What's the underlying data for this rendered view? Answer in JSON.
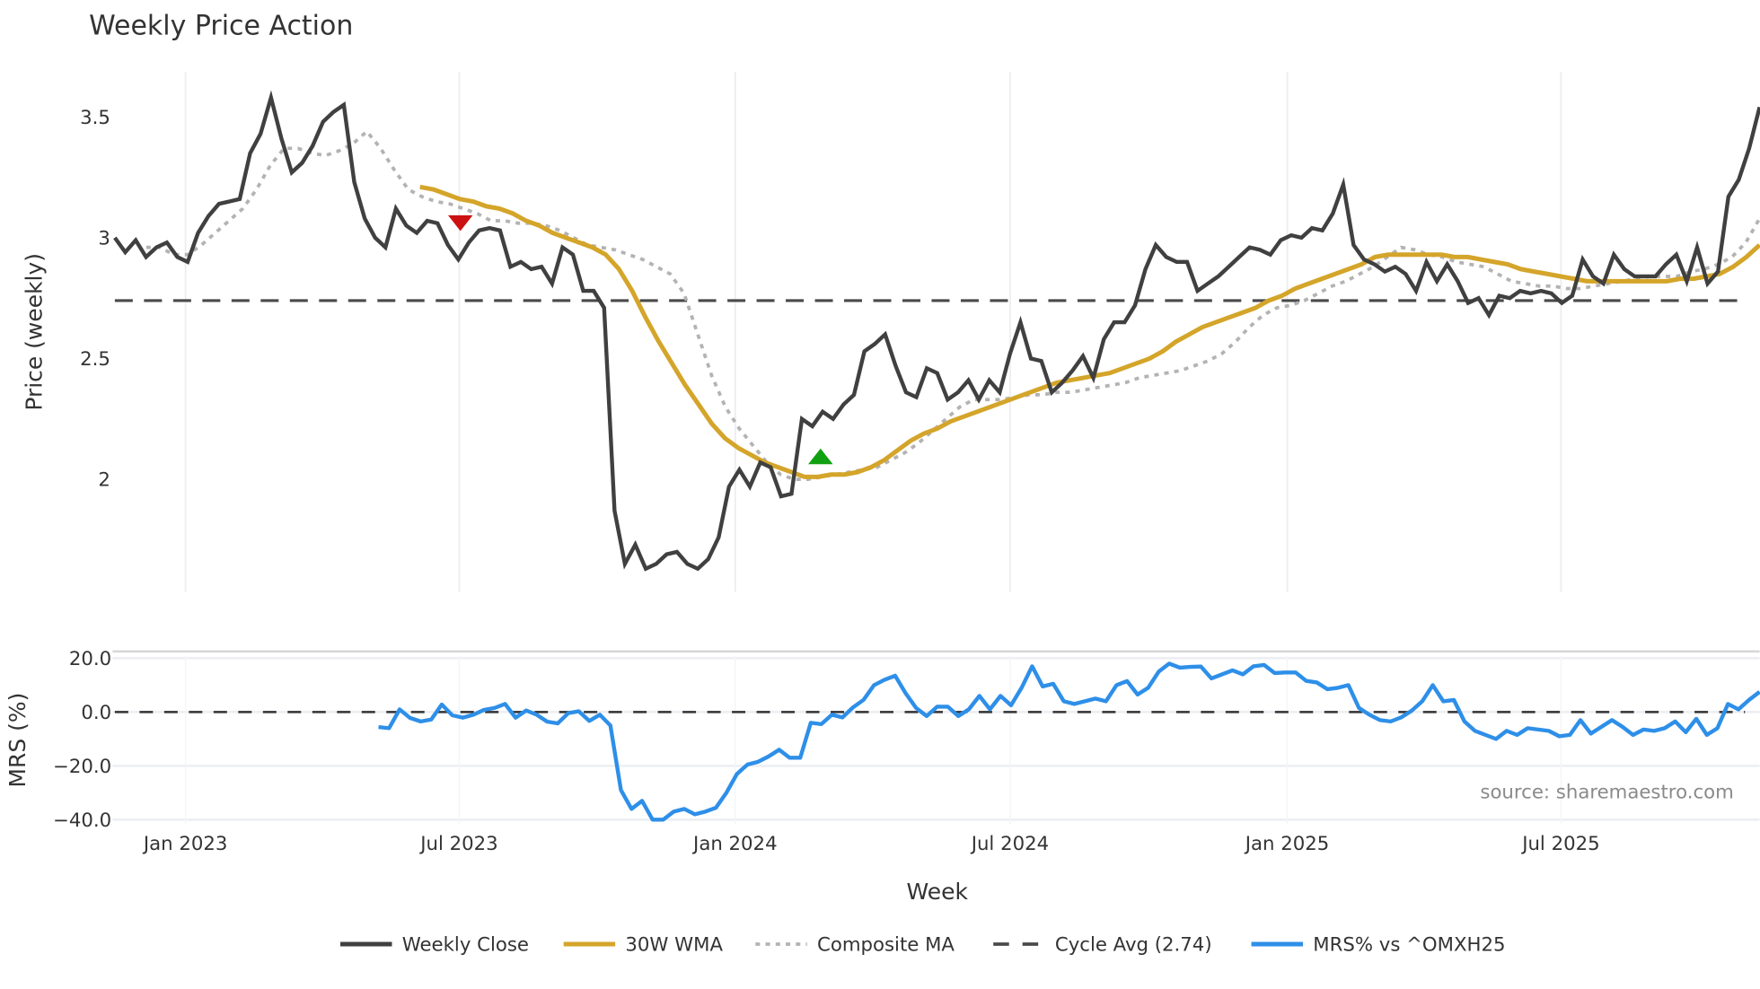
{
  "title": "Weekly Price Action",
  "source_text": "source: sharemaestro.com",
  "colors": {
    "weekly_close": "#404040",
    "wma30": "#D4A52A",
    "composite_ma": "#b3b3b3",
    "cycle_avg": "#4a4a4a",
    "mrs": "#2E8FE8",
    "sell_marker": "#CC1111",
    "buy_marker": "#11A011",
    "grid": "#eceef2",
    "mrs_zero_line": "#333333"
  },
  "legend": [
    {
      "label": "Weekly Close",
      "style": "solid",
      "color": "#404040"
    },
    {
      "label": "30W WMA",
      "style": "solid",
      "color": "#D4A52A"
    },
    {
      "label": "Composite MA",
      "style": "dotted",
      "color": "#b3b3b3"
    },
    {
      "label": "Cycle Avg (2.74)",
      "style": "dashed",
      "color": "#4a4a4a"
    },
    {
      "label": "MRS% vs ^OMXH25",
      "style": "solid",
      "color": "#2E8FE8"
    }
  ],
  "price_panel": {
    "ylabel": "Price (weekly)",
    "yticks": [
      "2",
      "2.5",
      "3",
      "3.5"
    ]
  },
  "mrs_panel": {
    "ylabel": "MRS (%)",
    "yticks": [
      "20.0",
      "0.0",
      "−20.0",
      "−40.0"
    ]
  },
  "xaxis": {
    "xlabel": "Week",
    "xticks": [
      "Jan 2023",
      "Jul 2023",
      "Jan 2024",
      "Jul 2024",
      "Jan 2025",
      "Jul 2025"
    ]
  },
  "chart_data": [
    {
      "type": "line",
      "title": "Weekly Price Action",
      "xlabel": "Week",
      "ylabel": "Price (weekly)",
      "ylim": [
        1.55,
        3.7
      ],
      "grid": true,
      "legend_position": "bottom",
      "x_tick_labels": [
        "Jan 2023",
        "Jul 2023",
        "Jan 2024",
        "Jul 2024",
        "Jan 2025",
        "Jul 2025"
      ],
      "y_tick_labels": [
        "2",
        "2.5",
        "3",
        "3.5"
      ],
      "series": [
        {
          "name": "Weekly Close",
          "x_start": "Nov 2022",
          "frequency": "weekly",
          "values": [
            3.0,
            2.94,
            2.99,
            2.92,
            2.96,
            2.98,
            2.92,
            2.9,
            3.02,
            3.09,
            3.14,
            3.15,
            3.16,
            3.35,
            3.43,
            3.58,
            3.41,
            3.27,
            3.31,
            3.38,
            3.48,
            3.52,
            3.55,
            3.23,
            3.08,
            3.0,
            2.96,
            3.12,
            3.05,
            3.02,
            3.07,
            3.06,
            2.97,
            2.91,
            2.98,
            3.03,
            3.04,
            3.03,
            2.88,
            2.9,
            2.87,
            2.88,
            2.81,
            2.96,
            2.93,
            2.78,
            2.78,
            2.71,
            1.87,
            1.65,
            1.73,
            1.63,
            1.65,
            1.69,
            1.7,
            1.65,
            1.63,
            1.67,
            1.76,
            1.97,
            2.04,
            1.97,
            2.07,
            2.05,
            1.93,
            1.94,
            2.25,
            2.22,
            2.28,
            2.25,
            2.31,
            2.35,
            2.53,
            2.56,
            2.6,
            2.47,
            2.36,
            2.34,
            2.46,
            2.44,
            2.33,
            2.36,
            2.41,
            2.33,
            2.41,
            2.36,
            2.52,
            2.65,
            2.5,
            2.49,
            2.36,
            2.4,
            2.45,
            2.51,
            2.42,
            2.58,
            2.65,
            2.65,
            2.72,
            2.87,
            2.97,
            2.92,
            2.9,
            2.9,
            2.78,
            2.81,
            2.84,
            2.88,
            2.92,
            2.96,
            2.95,
            2.93,
            2.99,
            3.01,
            3.0,
            3.04,
            3.03,
            3.1,
            3.22,
            2.97,
            2.91,
            2.89,
            2.86,
            2.88,
            2.85,
            2.78,
            2.9,
            2.82,
            2.89,
            2.82,
            2.73,
            2.75,
            2.68,
            2.76,
            2.75,
            2.78,
            2.77,
            2.78,
            2.77,
            2.73,
            2.76,
            2.91,
            2.84,
            2.81,
            2.93,
            2.87,
            2.84,
            2.84,
            2.84,
            2.89,
            2.93,
            2.82,
            2.96,
            2.81,
            2.86,
            3.17,
            3.24,
            3.37,
            3.54
          ]
        },
        {
          "name": "30W WMA",
          "x_start": "Jun 2023",
          "frequency": "weekly",
          "values": [
            3.21,
            3.2,
            3.18,
            3.16,
            3.15,
            3.13,
            3.12,
            3.1,
            3.07,
            3.05,
            3.02,
            3.0,
            2.98,
            2.96,
            2.93,
            2.87,
            2.78,
            2.67,
            2.57,
            2.48,
            2.39,
            2.31,
            2.23,
            2.17,
            2.13,
            2.1,
            2.07,
            2.05,
            2.03,
            2.01,
            2.01,
            2.02,
            2.02,
            2.03,
            2.05,
            2.08,
            2.12,
            2.16,
            2.19,
            2.21,
            2.24,
            2.26,
            2.28,
            2.3,
            2.32,
            2.34,
            2.36,
            2.38,
            2.4,
            2.41,
            2.42,
            2.43,
            2.44,
            2.46,
            2.48,
            2.5,
            2.53,
            2.57,
            2.6,
            2.63,
            2.65,
            2.67,
            2.69,
            2.71,
            2.74,
            2.76,
            2.79,
            2.81,
            2.83,
            2.85,
            2.87,
            2.89,
            2.92,
            2.93,
            2.93,
            2.93,
            2.93,
            2.93,
            2.92,
            2.92,
            2.91,
            2.9,
            2.89,
            2.87,
            2.86,
            2.85,
            2.84,
            2.83,
            2.82,
            2.82,
            2.82,
            2.82,
            2.82,
            2.82,
            2.82,
            2.83,
            2.83,
            2.84,
            2.85,
            2.88,
            2.92,
            2.97
          ]
        },
        {
          "name": "Composite MA",
          "x_start": "Dec 2022",
          "frequency": "weekly",
          "values": [
            2.96,
            2.96,
            2.93,
            2.93,
            2.97,
            3.02,
            3.07,
            3.12,
            3.2,
            3.3,
            3.37,
            3.37,
            3.35,
            3.34,
            3.36,
            3.39,
            3.44,
            3.37,
            3.28,
            3.2,
            3.17,
            3.15,
            3.14,
            3.12,
            3.1,
            3.07,
            3.07,
            3.06,
            3.06,
            3.05,
            3.03,
            3.0,
            2.97,
            2.96,
            2.95,
            2.93,
            2.91,
            2.88,
            2.85,
            2.77,
            2.6,
            2.43,
            2.3,
            2.21,
            2.14,
            2.07,
            2.02,
            2.0,
            2.0,
            2.01,
            2.02,
            2.03,
            2.04,
            2.05,
            2.08,
            2.11,
            2.15,
            2.2,
            2.25,
            2.3,
            2.33,
            2.33,
            2.33,
            2.34,
            2.35,
            2.35,
            2.36,
            2.36,
            2.37,
            2.38,
            2.39,
            2.4,
            2.42,
            2.43,
            2.44,
            2.45,
            2.47,
            2.49,
            2.52,
            2.57,
            2.63,
            2.68,
            2.71,
            2.72,
            2.74,
            2.77,
            2.8,
            2.82,
            2.85,
            2.88,
            2.92,
            2.96,
            2.95,
            2.93,
            2.92,
            2.9,
            2.89,
            2.88,
            2.85,
            2.82,
            2.81,
            2.8,
            2.8,
            2.79,
            2.79,
            2.8,
            2.81,
            2.82,
            2.83,
            2.84,
            2.84,
            2.84,
            2.86,
            2.87,
            2.89,
            2.92,
            2.98,
            3.08
          ]
        },
        {
          "name": "Cycle Avg (2.74)",
          "type": "hline",
          "value": 2.74
        }
      ],
      "annotations": [
        {
          "type": "marker",
          "shape": "triangle-down",
          "color": "#CC1111",
          "x": "Jul 2023",
          "y": 3.06,
          "meaning": "sell signal"
        },
        {
          "type": "marker",
          "shape": "triangle-up",
          "color": "#11A011",
          "x": "Mar 2024",
          "y": 2.09,
          "meaning": "buy signal"
        }
      ]
    },
    {
      "type": "line",
      "title": "",
      "xlabel": "Week",
      "ylabel": "MRS (%)",
      "ylim": [
        -42,
        22
      ],
      "grid": true,
      "y_tick_labels": [
        "20.0",
        "0.0",
        "−20.0",
        "−40.0"
      ],
      "series": [
        {
          "name": "MRS% vs ^OMXH25",
          "x_start": "May 2023",
          "frequency": "weekly",
          "values": [
            -5.6,
            -6.0,
            1.0,
            -2.2,
            -3.5,
            -2.8,
            2.8,
            -1.2,
            -2.1,
            -1.0,
            0.8,
            1.5,
            3.0,
            -2.1,
            0.6,
            -1.0,
            -3.6,
            -4.2,
            -0.4,
            0.3,
            -3.3,
            -1.0,
            -5.0,
            -29.0,
            -36.0,
            -33.0,
            -40.0,
            -40.0,
            -37.0,
            -36.0,
            -38.0,
            -37.0,
            -35.6,
            -30.0,
            -23.0,
            -19.5,
            -18.5,
            -16.5,
            -14.0,
            -17.0,
            -17.0,
            -4.0,
            -4.5,
            -1.0,
            -2.0,
            1.7,
            4.5,
            10.0,
            12.0,
            13.5,
            7.0,
            1.5,
            -1.5,
            2.0,
            2.0,
            -1.5,
            1.0,
            6.0,
            1.0,
            6.0,
            2.5,
            9.0,
            17.0,
            9.5,
            10.5,
            4.0,
            3.0,
            4.0,
            5.0,
            4.0,
            10.0,
            11.5,
            6.5,
            9.0,
            15.0,
            18.0,
            16.5,
            16.8,
            16.9,
            12.5,
            14.0,
            15.5,
            14.0,
            17.0,
            17.5,
            14.5,
            14.7,
            14.7,
            11.6,
            11.0,
            8.5,
            9.0,
            10.0,
            1.5,
            -1.0,
            -3.0,
            -3.5,
            -2.0,
            0.5,
            4.0,
            10.0,
            4.0,
            4.5,
            -3.5,
            -7.0,
            -8.5,
            -10.0,
            -7.0,
            -8.5,
            -6.0,
            -6.5,
            -7.0,
            -9.0,
            -8.5,
            -3.0,
            -8.0,
            -5.5,
            -3.0,
            -5.5,
            -8.5,
            -6.5,
            -7.0,
            -6.0,
            -3.5,
            -7.5,
            -2.5,
            -8.5,
            -6.0,
            3.0,
            1.0,
            4.5,
            7.5
          ]
        },
        {
          "name": "zero line",
          "type": "hline",
          "value": 0
        }
      ],
      "annotations": [
        {
          "type": "text",
          "text": "source: sharemaestro.com",
          "position": "lower-right"
        }
      ]
    }
  ]
}
